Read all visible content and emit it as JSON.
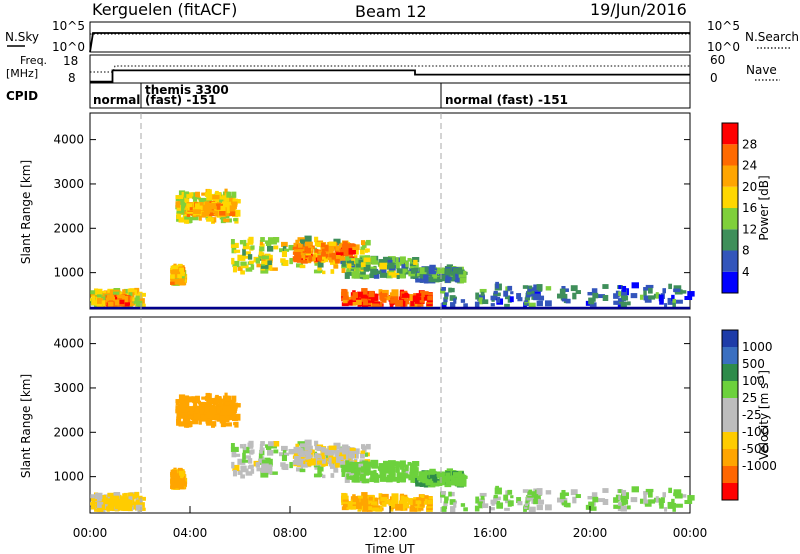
{
  "header": {
    "station": "Kerguelen (fitACF)",
    "beam": "Beam 12",
    "date": "19/Jun/2016"
  },
  "strips": {
    "nsky": {
      "left_label": "N.Sky",
      "left_ticks": [
        "10^5",
        "10^0"
      ],
      "right_ticks": [
        "10^5",
        "10^0"
      ],
      "right_label": "N.Search",
      "legend_style": "dotted"
    },
    "freq": {
      "left_label_line1": "Freq.",
      "left_label_line2": "[MHz]",
      "left_ticks": [
        "18",
        "8"
      ],
      "right_ticks": [
        "60",
        "0"
      ],
      "right_label": "Nave",
      "legend_style": "dotted"
    },
    "cpid": {
      "label": "CPID",
      "modes": [
        {
          "text": "normal",
          "start_hour": 0,
          "end_hour": 2
        },
        {
          "text_line1": "themis 3300",
          "text_line2": "(fast) -151",
          "start_hour": 2,
          "end_hour": 14
        },
        {
          "text": "normal (fast) -151",
          "start_hour": 14,
          "end_hour": 24
        }
      ]
    }
  },
  "axes": {
    "xlabel": "Time UT",
    "x_tick_labels": [
      "00:00",
      "04:00",
      "08:00",
      "12:00",
      "16:00",
      "20:00",
      "00:00"
    ],
    "ylabel": "Slant Range [km]",
    "y_tick_labels": [
      "1000",
      "2000",
      "3000",
      "4000"
    ]
  },
  "colorbars": {
    "power": {
      "label": "Power [dB]",
      "tick_labels": [
        "4",
        "8",
        "12",
        "16",
        "20",
        "24",
        "28"
      ],
      "colors": [
        "#0000ff",
        "#3355bb",
        "#3f8f5a",
        "#7fd03a",
        "#ffd700",
        "#ffa500",
        "#ff6a00",
        "#ff0000"
      ]
    },
    "velocity": {
      "label": "Velocity [m s",
      "label_sup": "-1",
      "label_end": "]",
      "tick_labels": [
        "1000",
        "500",
        "100",
        "25",
        "-25",
        "-100",
        "-500",
        "-1000"
      ],
      "colors": [
        "#1e3ca8",
        "#3a6fc0",
        "#2e8b4a",
        "#6cd13c",
        "#bdbdbd",
        "#bdbdbd",
        "#ffcc00",
        "#ffa500",
        "#ff6600",
        "#ff0000"
      ]
    }
  },
  "chart_data": {
    "type": "heatmap",
    "title": "Kerguelen (fitACF)  Beam 12  19/Jun/2016",
    "xlabel": "Time UT",
    "ylabel": "Slant Range [km]",
    "xlim": [
      0,
      24
    ],
    "ylim": [
      180,
      4600
    ],
    "x_unit": "hours UT",
    "mode_change_hours": [
      2,
      14
    ],
    "freq_mhz_segments": [
      {
        "start_hour": 0,
        "end_hour": 0.9,
        "freq": 8.5
      },
      {
        "start_hour": 0.9,
        "end_hour": 13.0,
        "freq": 12.5
      },
      {
        "start_hour": 13.0,
        "end_hour": 24,
        "freq": 11.0
      }
    ],
    "echo_regions": [
      {
        "t0": 0.0,
        "t1": 2.0,
        "r0": 200,
        "r1": 520,
        "power_db": 18,
        "velocity": -40
      },
      {
        "t0": 0.6,
        "t1": 1.4,
        "r0": 230,
        "r1": 380,
        "power_db": 26,
        "velocity": -60
      },
      {
        "t0": 3.4,
        "t1": 5.8,
        "r0": 2100,
        "r1": 2750,
        "power_db": 17,
        "velocity": -200
      },
      {
        "t0": 3.8,
        "t1": 5.6,
        "r0": 2250,
        "r1": 2500,
        "power_db": 22,
        "velocity": -300
      },
      {
        "t0": 3.2,
        "t1": 3.6,
        "r0": 700,
        "r1": 1050,
        "power_db": 20,
        "velocity": -120
      },
      {
        "t0": 5.5,
        "t1": 11.5,
        "r0": 950,
        "r1": 1700,
        "power_db": 16,
        "velocity": 10
      },
      {
        "t0": 8.0,
        "t1": 10.5,
        "r0": 1200,
        "r1": 1600,
        "power_db": 24,
        "velocity": -20
      },
      {
        "t0": 10.0,
        "t1": 13.0,
        "r0": 850,
        "r1": 1250,
        "power_db": 12,
        "velocity": 60
      },
      {
        "t0": 13.0,
        "t1": 14.8,
        "r0": 750,
        "r1": 1050,
        "power_db": 10,
        "velocity": 80
      },
      {
        "t0": 10.0,
        "t1": 13.5,
        "r0": 200,
        "r1": 500,
        "power_db": 27,
        "velocity": -90
      },
      {
        "t0": 14.0,
        "t1": 24.0,
        "r0": 200,
        "r1": 650,
        "power_db": 8,
        "velocity": 30
      }
    ]
  }
}
